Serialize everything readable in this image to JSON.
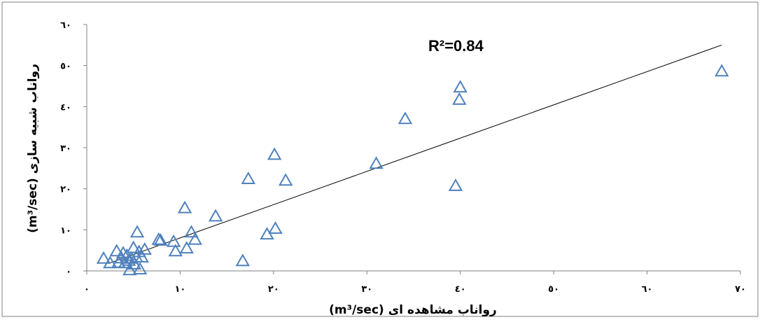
{
  "chart_data": {
    "type": "scatter",
    "xlabel": "رواناب مشاهده ای (m³/sec)",
    "ylabel": "رواناب شبیه سازی (m³/sec)",
    "xlim": [
      0,
      70
    ],
    "ylim": [
      0,
      60
    ],
    "x_ticks": [
      0,
      10,
      20,
      30,
      40,
      50,
      60,
      70
    ],
    "x_tick_labels": [
      "٠",
      "١٠",
      "٢٠",
      "٣٠",
      "٤٠",
      "٥٠",
      "٦٠",
      "٧٠"
    ],
    "y_ticks": [
      0,
      10,
      20,
      30,
      40,
      50,
      60
    ],
    "y_tick_labels": [
      "٠",
      "١٠",
      "٢٠",
      "٣٠",
      "٤٠",
      "٥٠",
      "٦٠"
    ],
    "grid": false,
    "legend": "none",
    "marker": "open-triangle",
    "marker_color": "#4f81bd",
    "annotation": "R²=0.84",
    "trendline": {
      "x": [
        2.3,
        68
      ],
      "y": [
        1.8,
        55
      ]
    },
    "points": [
      {
        "x": 1.8,
        "y": 3.0
      },
      {
        "x": 2.5,
        "y": 1.9
      },
      {
        "x": 3.2,
        "y": 4.8
      },
      {
        "x": 3.4,
        "y": 2.0
      },
      {
        "x": 3.7,
        "y": 3.1
      },
      {
        "x": 3.9,
        "y": 4.3
      },
      {
        "x": 4.1,
        "y": 1.9
      },
      {
        "x": 4.3,
        "y": 3.7
      },
      {
        "x": 4.5,
        "y": 2.5
      },
      {
        "x": 4.6,
        "y": 0.2
      },
      {
        "x": 4.8,
        "y": 3.0
      },
      {
        "x": 5.0,
        "y": 5.6
      },
      {
        "x": 5.1,
        "y": 1.6
      },
      {
        "x": 5.3,
        "y": 3.3
      },
      {
        "x": 5.4,
        "y": 9.4
      },
      {
        "x": 5.6,
        "y": 4.6
      },
      {
        "x": 5.7,
        "y": 0.4
      },
      {
        "x": 5.9,
        "y": 3.3
      },
      {
        "x": 6.2,
        "y": 5.2
      },
      {
        "x": 7.7,
        "y": 7.6
      },
      {
        "x": 7.9,
        "y": 7.4
      },
      {
        "x": 9.3,
        "y": 7.1
      },
      {
        "x": 9.5,
        "y": 4.8
      },
      {
        "x": 10.5,
        "y": 15.3
      },
      {
        "x": 10.7,
        "y": 5.5
      },
      {
        "x": 11.2,
        "y": 9.4
      },
      {
        "x": 11.6,
        "y": 7.6
      },
      {
        "x": 13.8,
        "y": 13.3
      },
      {
        "x": 16.7,
        "y": 2.4
      },
      {
        "x": 17.3,
        "y": 22.4
      },
      {
        "x": 19.3,
        "y": 8.9
      },
      {
        "x": 20.1,
        "y": 28.3
      },
      {
        "x": 20.2,
        "y": 10.3
      },
      {
        "x": 21.3,
        "y": 22.0
      },
      {
        "x": 31.0,
        "y": 26.1
      },
      {
        "x": 34.1,
        "y": 37.0
      },
      {
        "x": 39.5,
        "y": 20.7
      },
      {
        "x": 39.9,
        "y": 41.7
      },
      {
        "x": 40.0,
        "y": 44.7
      },
      {
        "x": 68.0,
        "y": 48.6
      }
    ]
  }
}
